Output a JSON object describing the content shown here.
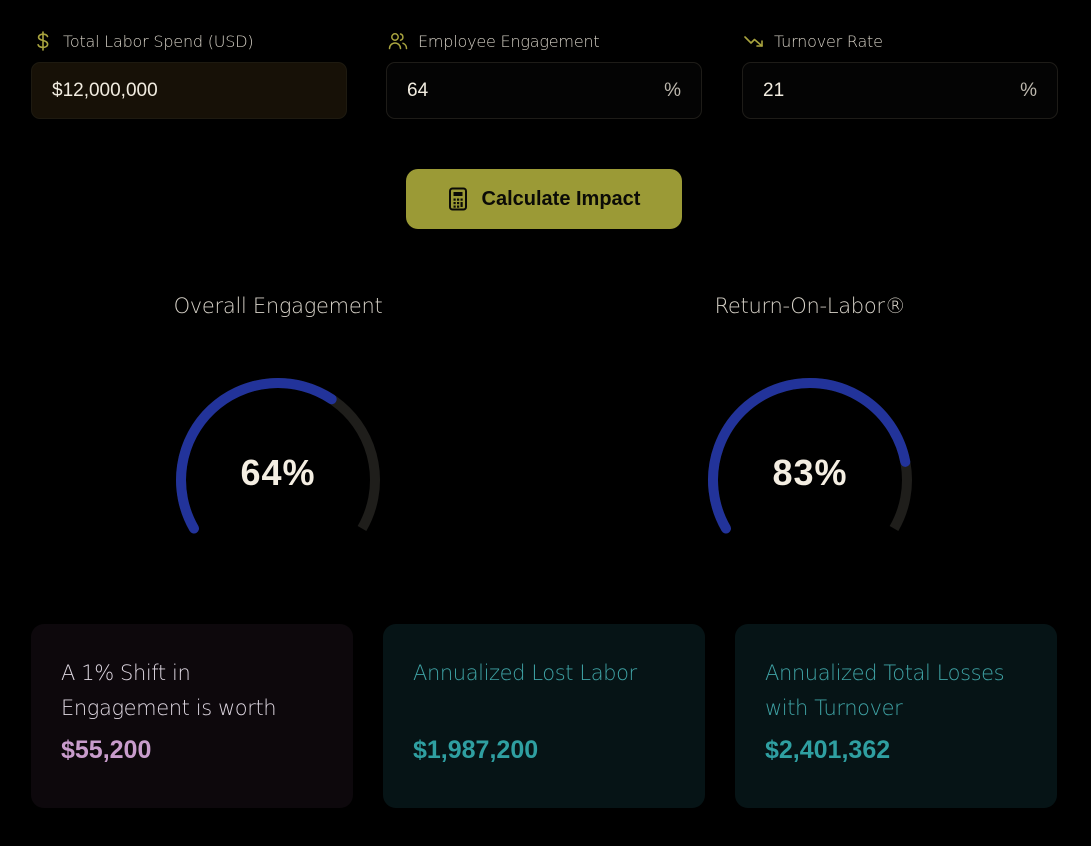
{
  "inputs": {
    "labor_spend": {
      "label": "Total Labor Spend (USD)",
      "icon": "dollar-icon",
      "value": "$12,000,000"
    },
    "engagement": {
      "label": "Employee Engagement",
      "icon": "users-icon",
      "value": "64",
      "unit": "%"
    },
    "turnover": {
      "label": "Turnover Rate",
      "icon": "trending-down-icon",
      "value": "21",
      "unit": "%"
    }
  },
  "calculate_button": {
    "label": "Calculate Impact",
    "icon": "calculator-icon"
  },
  "gauges": [
    {
      "title": "Overall Engagement",
      "value_label": "64%",
      "fraction": 0.64
    },
    {
      "title": "Return-On-Labor®",
      "value_label": "83%",
      "fraction": 0.83
    }
  ],
  "cards": [
    {
      "label": "A 1% Shift in Engagement is worth",
      "value": "$55,200"
    },
    {
      "label": "Annualized Lost Labor",
      "value": "$1,987,200"
    },
    {
      "label": "Annualized Total Losses with Turnover",
      "value": "$2,401,362"
    }
  ],
  "colors": {
    "accent": "#9b9a36",
    "gauge_fill": "#22339a",
    "gauge_track": "#1f1e1b",
    "card_purple_value": "#c89ccc",
    "card_teal": "#2f9fa1"
  }
}
